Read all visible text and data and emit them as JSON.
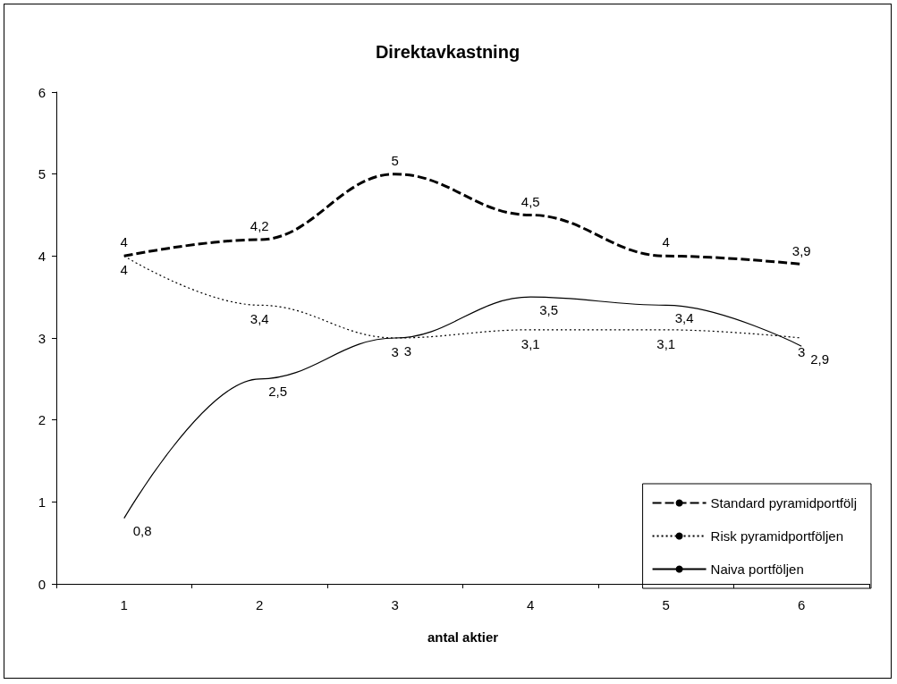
{
  "chart_data": {
    "type": "line",
    "title": "Direktavkastning",
    "xlabel": "antal aktier",
    "categories": [
      "1",
      "2",
      "3",
      "4",
      "5",
      "6"
    ],
    "series": [
      {
        "name": "Standard pyramidportfölj",
        "color": "#000000",
        "line_style": "dashed",
        "values": [
          4,
          4.2,
          5,
          4.5,
          4,
          3.9
        ],
        "value_labels": [
          "4",
          "4,2",
          "5",
          "4,5",
          "4",
          "3,9"
        ]
      },
      {
        "name": "Risk pyramidportföljen",
        "color": "#000000",
        "line_style": "dotted",
        "values": [
          4,
          3.4,
          3,
          3.1,
          3.1,
          3
        ],
        "value_labels": [
          "4",
          "3,4",
          "3",
          "3,1",
          "3,1",
          "3"
        ]
      },
      {
        "name": "Naiva portföljen",
        "color": "#000000",
        "line_style": "solid",
        "values": [
          0.8,
          2.5,
          3,
          3.5,
          3.4,
          2.9
        ],
        "value_labels": [
          "0,8",
          "2,5",
          "3",
          "3,5",
          "3,4",
          "2,9"
        ]
      }
    ],
    "ylim": [
      0,
      6
    ],
    "yticks": [
      0,
      1,
      2,
      3,
      4,
      5,
      6
    ],
    "grid": false,
    "legend": "bottom right",
    "marker": "none"
  }
}
